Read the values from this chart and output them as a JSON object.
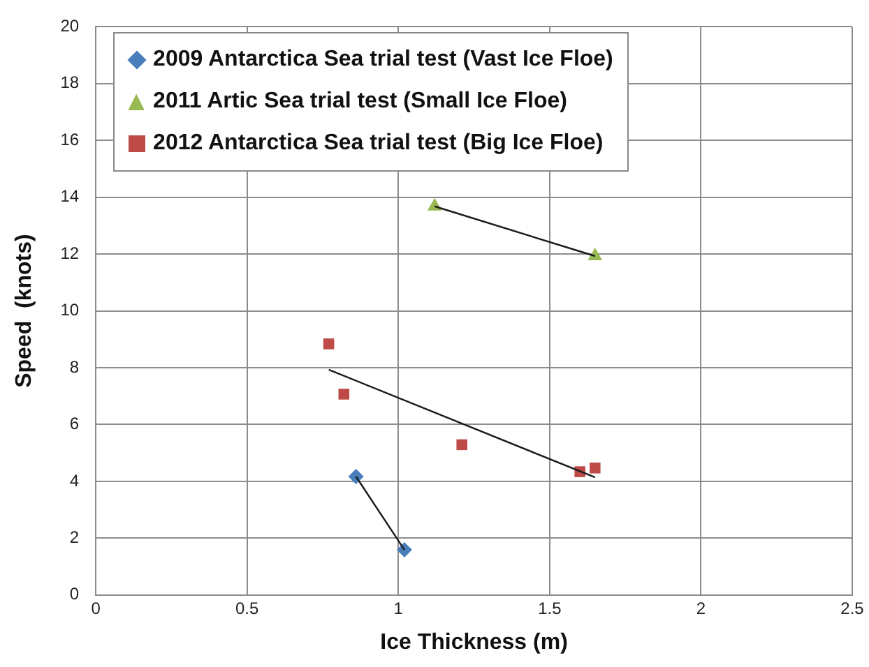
{
  "chart_data": {
    "type": "scatter",
    "xlabel": "Ice Thickness (m)",
    "ylabel": "Speed  (knots)",
    "xlim": [
      0,
      2.5
    ],
    "xticks": [
      0,
      0.5,
      1,
      1.5,
      2,
      2.5
    ],
    "ylim": [
      0,
      20
    ],
    "yticks": [
      0,
      2,
      4,
      6,
      8,
      10,
      12,
      14,
      16,
      18,
      20
    ],
    "grid": true,
    "legend": "top left",
    "series": [
      {
        "name": "2009 Antarctica Sea trial test (Vast Ice Floe)",
        "color": "#4a7ebb",
        "marker": "diamond",
        "x": [
          0.86,
          1.02
        ],
        "values": [
          4.17,
          1.59
        ]
      },
      {
        "name": "2011 Artic Sea trial test (Small Ice Floe)",
        "color": "#98b954",
        "marker": "triangle",
        "x": [
          1.12,
          1.65
        ],
        "values": [
          13.68,
          11.93
        ]
      },
      {
        "name": "2012 Antarctica Sea trial test (Big Ice Floe)",
        "color": "#be4b48",
        "marker": "square",
        "x": [
          0.77,
          0.82,
          1.21,
          1.6,
          1.65
        ],
        "values": [
          8.84,
          7.07,
          5.29,
          4.34,
          4.47
        ]
      },
      {
        "type": "line",
        "color": "#1a1a1a",
        "marker": "none",
        "x": [
          0.86,
          1.02
        ],
        "values": [
          4.17,
          1.59
        ]
      },
      {
        "type": "line",
        "color": "#1a1a1a",
        "marker": "none",
        "x": [
          1.12,
          1.65
        ],
        "values": [
          13.68,
          11.93
        ]
      },
      {
        "type": "line",
        "color": "#1a1a1a",
        "marker": "none",
        "x": [
          0.77,
          1.65
        ],
        "values": [
          7.93,
          4.14
        ]
      }
    ]
  }
}
